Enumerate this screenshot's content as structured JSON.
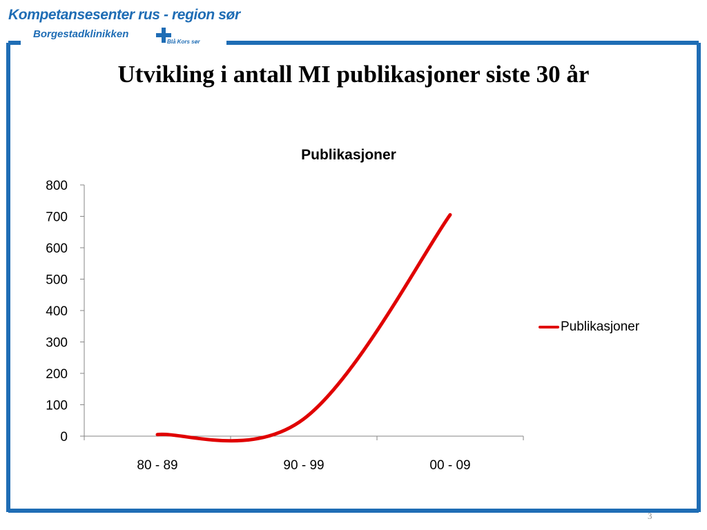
{
  "header": {
    "org_name": "Kompetansesenter rus - region sør",
    "clinic_name": "Borgestadklinikken",
    "partner_label": "Blå Kors sør"
  },
  "slide": {
    "title": "Utvikling i antall MI publikasjoner siste 30 år",
    "page_number": "3"
  },
  "colors": {
    "brand_blue": "#1f6db5",
    "series_red": "#e00000"
  },
  "chart_data": {
    "type": "line",
    "title": "Publikasjoner",
    "categories": [
      "80 - 89",
      "90 - 99",
      "00 - 09"
    ],
    "series": [
      {
        "name": "Publikasjoner",
        "values": [
          5,
          55,
          705
        ],
        "color": "#e00000"
      }
    ],
    "ylim": [
      0,
      800
    ],
    "yticks": [
      "0",
      "100",
      "200",
      "300",
      "400",
      "500",
      "600",
      "700",
      "800"
    ],
    "grid": false,
    "legend": "right",
    "smooth": true
  }
}
